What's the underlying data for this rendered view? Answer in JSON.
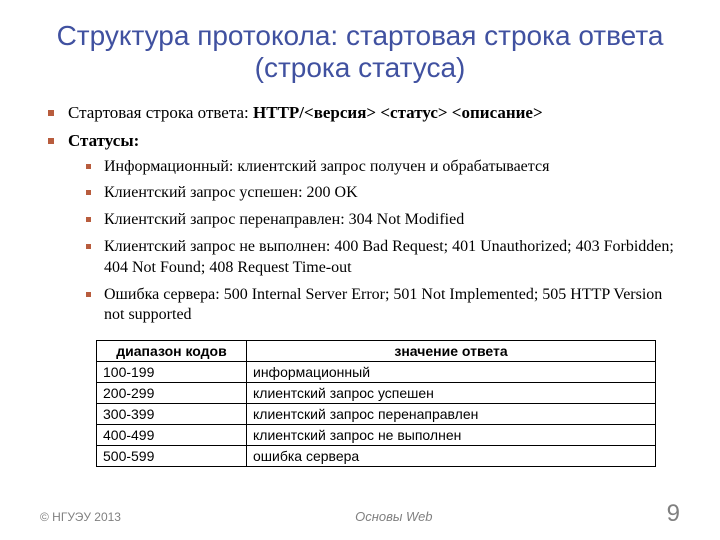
{
  "title": "Структура протокола: стартовая строка ответа (строка статуса)",
  "bullets": {
    "line1_prefix": "Стартовая строка ответа:",
    "line1_code": " HTTP/<версия> <статус> <описание>",
    "line2": "Статусы:"
  },
  "status_items": [
    "Информационный: клиентский запрос получен и обрабатывается",
    "Клиентский запрос успешен: 200 OK",
    "Клиентский запрос перенаправлен: 304 Not Modified",
    "Клиентский запрос не выполнен: 400 Bad Request; 401 Unauthorized; 403 Forbidden; 404 Not Found; 408 Request Time-out",
    "Ошибка сервера: 500 Internal Server Error; 501 Not Implemented; 505 HTTP Version not supported"
  ],
  "table": {
    "headers": [
      "диапазон кодов",
      "значение ответа"
    ],
    "rows": [
      [
        "100-199",
        "информационный"
      ],
      [
        "200-299",
        "клиентский запрос успешен"
      ],
      [
        "300-399",
        "клиентский запрос перенаправлен"
      ],
      [
        "400-499",
        "клиентский запрос не выполнен"
      ],
      [
        "500-599",
        "ошибка сервера"
      ]
    ]
  },
  "footer": {
    "left": "© НГУЭУ 2013",
    "center": "Основы Web",
    "page": "9"
  },
  "colors": {
    "title": "#4051a0",
    "bullet": "#b85c3d",
    "text": "#000000",
    "footer": "#808080",
    "background": "#ffffff",
    "table_border": "#000000"
  },
  "fonts": {
    "title_family": "Arial",
    "title_size_pt": 28,
    "body_family": "Times New Roman",
    "body_size_pt": 17,
    "sub_size_pt": 16,
    "table_family": "Arial",
    "table_size_pt": 14,
    "footer_size_pt": 12,
    "page_number_size_pt": 24
  }
}
